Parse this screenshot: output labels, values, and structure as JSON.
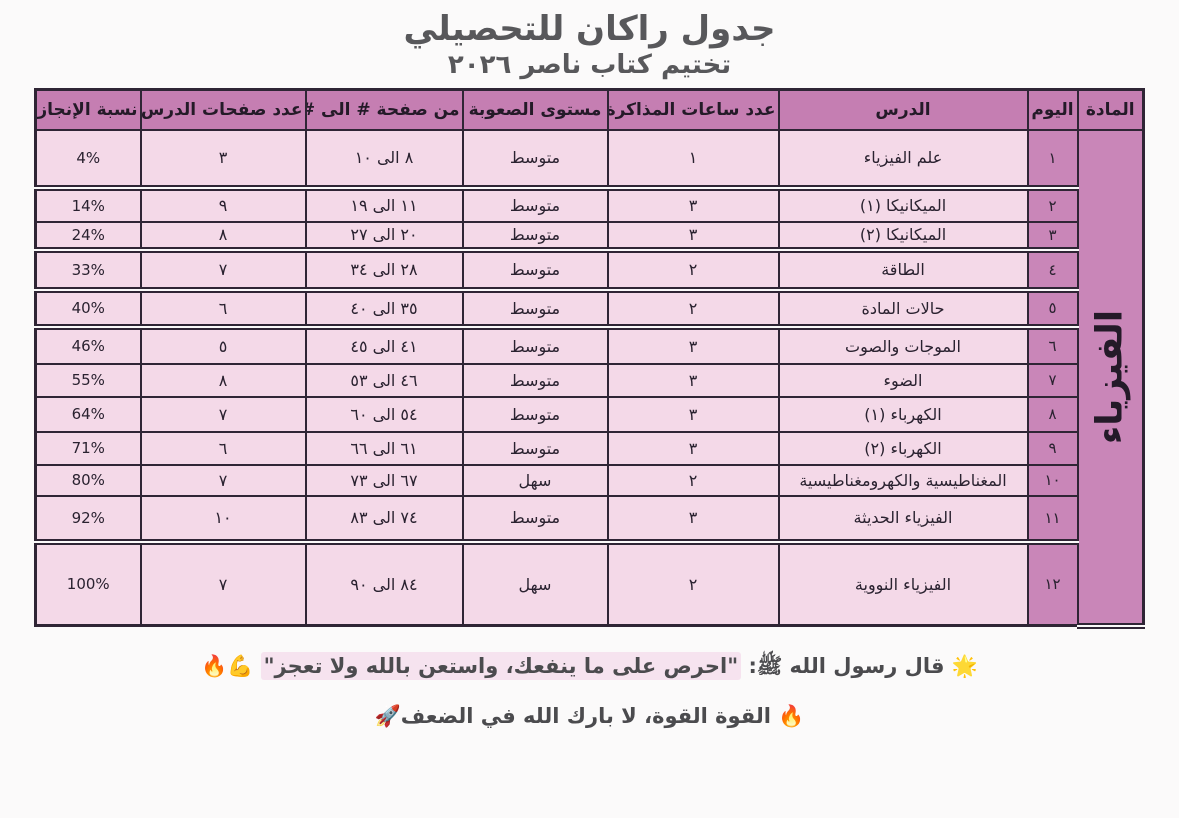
{
  "header": {
    "title": "جدول راكان للتحصيلي",
    "subtitle": "تختيم كتاب ناصر ٢٠٢٦"
  },
  "table": {
    "columns": [
      "المادة",
      "اليوم",
      "الدرس",
      "عدد ساعات المذاكرة",
      "مستوى الصعوبة",
      "من صفحة # الى #",
      "عدد صفحات الدرس",
      "نسبة الإنجاز"
    ],
    "subject": "الفيزياء",
    "rows": [
      {
        "day": "١",
        "lesson": "علم الفيزياء",
        "hours": "١",
        "difficulty": "متوسط",
        "pages_range": "٨ الى ١٠",
        "pages_count": "٣",
        "progress": "4%"
      },
      {
        "day": "٢",
        "lesson": "الميكانيكا (١)",
        "hours": "٣",
        "difficulty": "متوسط",
        "pages_range": "١١ الى ١٩",
        "pages_count": "٩",
        "progress": "14%"
      },
      {
        "day": "٣",
        "lesson": "الميكانيكا (٢)",
        "hours": "٣",
        "difficulty": "متوسط",
        "pages_range": "٢٠ الى ٢٧",
        "pages_count": "٨",
        "progress": "24%"
      },
      {
        "day": "٤",
        "lesson": "الطاقة",
        "hours": "٢",
        "difficulty": "متوسط",
        "pages_range": "٢٨ الى ٣٤",
        "pages_count": "٧",
        "progress": "33%"
      },
      {
        "day": "٥",
        "lesson": "حالات المادة",
        "hours": "٢",
        "difficulty": "متوسط",
        "pages_range": "٣٥ الى ٤٠",
        "pages_count": "٦",
        "progress": "40%"
      },
      {
        "day": "٦",
        "lesson": "الموجات والصوت",
        "hours": "٣",
        "difficulty": "متوسط",
        "pages_range": "٤١ الى ٤٥",
        "pages_count": "٥",
        "progress": "46%"
      },
      {
        "day": "٧",
        "lesson": "الضوء",
        "hours": "٣",
        "difficulty": "متوسط",
        "pages_range": "٤٦ الى ٥٣",
        "pages_count": "٨",
        "progress": "55%"
      },
      {
        "day": "٨",
        "lesson": "الكهرباء (١)",
        "hours": "٣",
        "difficulty": "متوسط",
        "pages_range": "٥٤ الى ٦٠",
        "pages_count": "٧",
        "progress": "64%"
      },
      {
        "day": "٩",
        "lesson": "الكهرباء (٢)",
        "hours": "٣",
        "difficulty": "متوسط",
        "pages_range": "٦١ الى ٦٦",
        "pages_count": "٦",
        "progress": "71%"
      },
      {
        "day": "١٠",
        "lesson": "المغناطيسية والكهرومغناطيسية",
        "hours": "٢",
        "difficulty": "سهل",
        "pages_range": "٦٧ الى ٧٣",
        "pages_count": "٧",
        "progress": "80%"
      },
      {
        "day": "١١",
        "lesson": "الفيزياء الحديثة",
        "hours": "٣",
        "difficulty": "متوسط",
        "pages_range": "٧٤ الى ٨٣",
        "pages_count": "١٠",
        "progress": "92%"
      },
      {
        "day": "١٢",
        "lesson": "الفيزياء النووية",
        "hours": "٢",
        "difficulty": "سهل",
        "pages_range": "٨٤ الى ٩٠",
        "pages_count": "٧",
        "progress": "100%"
      }
    ]
  },
  "footer": {
    "line1_prefix": "🌟 قال رسول الله ﷺ: ",
    "line1_quote": "\"احرص على ما ينفعك، واستعن بالله ولا تعجز\"",
    "line1_suffix": " 💪🔥",
    "line2": "🔥 القوة القوة، لا بارك الله في الضعف🚀"
  },
  "colors": {
    "header-bg": "#c57eb2",
    "day-bg": "#c986b8",
    "cell-bg": "#f4d9e8",
    "border": "#2f2535",
    "title-color": "#58585b",
    "highlight": "#f6e3ef"
  }
}
